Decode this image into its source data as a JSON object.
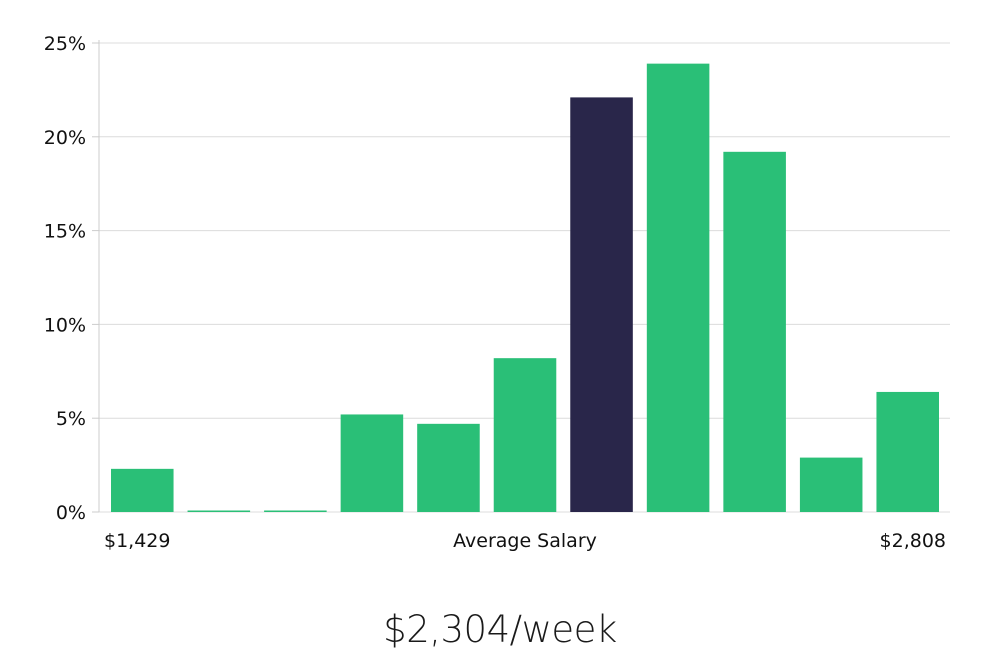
{
  "chart_data": {
    "type": "bar",
    "title": "",
    "xlabel": "Average Salary",
    "ylabel": "",
    "x_min_label": "$1,429",
    "x_max_label": "$2,808",
    "x_range": [
      1429,
      2808
    ],
    "ylim": [
      0,
      25
    ],
    "y_ticks": [
      "0%",
      "5%",
      "10%",
      "15%",
      "20%",
      "25%"
    ],
    "y_tick_values": [
      0,
      5,
      10,
      15,
      20,
      25
    ],
    "grid": true,
    "legend": "none",
    "values": [
      2.3,
      0.05,
      0.05,
      5.2,
      4.7,
      8.2,
      22.1,
      23.9,
      19.2,
      2.9,
      6.4
    ],
    "highlight_index": 6,
    "colors": {
      "bar": "#2abf77",
      "highlight": "#29264a",
      "grid": "#dcdcdc",
      "axis": "#cccccc"
    }
  },
  "summary": {
    "salary_text": "$2,304/week"
  }
}
